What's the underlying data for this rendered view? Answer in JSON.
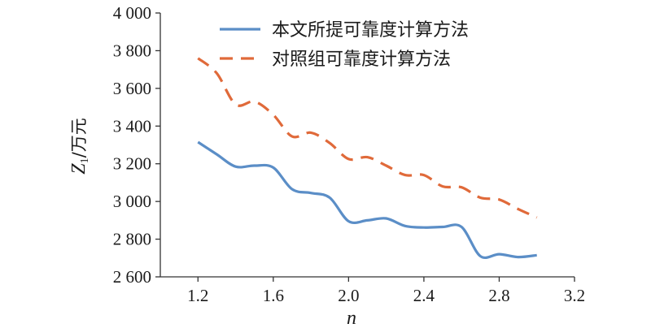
{
  "chart_data": {
    "type": "line",
    "xlabel": "n",
    "ylabel_main": "Z",
    "ylabel_sub": "1",
    "ylabel_unit": "/万元",
    "xlim": [
      1.0,
      3.2
    ],
    "ylim": [
      2600,
      4000
    ],
    "x_ticks": [
      1.2,
      1.6,
      2.0,
      2.4,
      2.8,
      3.2
    ],
    "x_tick_labels": [
      "1.2",
      "1.6",
      "2.0",
      "2.4",
      "2.8",
      "3.2"
    ],
    "y_ticks": [
      2600,
      2800,
      3000,
      3200,
      3400,
      3600,
      3800,
      4000
    ],
    "y_tick_labels": [
      "2 600",
      "2 800",
      "3 000",
      "3 200",
      "3 400",
      "3 600",
      "3 800",
      "4 000"
    ],
    "legend_position": "top-right",
    "series": [
      {
        "name": "本文所提可靠度计算方法",
        "color": "#5b8ec7",
        "style": "solid",
        "x": [
          1.2,
          1.3,
          1.4,
          1.5,
          1.6,
          1.7,
          1.8,
          1.9,
          2.0,
          2.1,
          2.2,
          2.3,
          2.4,
          2.5,
          2.6,
          2.7,
          2.8,
          2.9,
          3.0
        ],
        "y": [
          3315,
          3250,
          3185,
          3190,
          3180,
          3065,
          3045,
          3020,
          2895,
          2900,
          2910,
          2870,
          2862,
          2865,
          2865,
          2710,
          2720,
          2705,
          2715
        ]
      },
      {
        "name": "对照组可靠度计算方法",
        "color": "#e06a3a",
        "style": "dashed",
        "x": [
          1.2,
          1.3,
          1.4,
          1.5,
          1.6,
          1.7,
          1.8,
          1.9,
          2.0,
          2.1,
          2.2,
          2.3,
          2.4,
          2.5,
          2.6,
          2.7,
          2.8,
          2.9,
          3.0
        ],
        "y": [
          3760,
          3680,
          3515,
          3530,
          3460,
          3345,
          3365,
          3310,
          3225,
          3235,
          3190,
          3140,
          3140,
          3080,
          3075,
          3020,
          3010,
          2960,
          2915
        ]
      }
    ]
  }
}
